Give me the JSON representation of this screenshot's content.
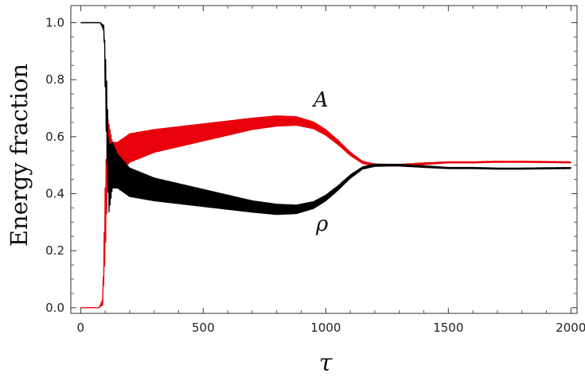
{
  "chart_data": {
    "type": "line",
    "title": "",
    "xlabel": "τ",
    "ylabel": "Energy fraction",
    "xlim": [
      -40,
      2025
    ],
    "ylim": [
      -0.02,
      1.06
    ],
    "x_ticks": [
      0,
      500,
      1000,
      1500,
      2000
    ],
    "y_ticks": [
      0.0,
      0.2,
      0.4,
      0.6,
      0.8,
      1.0
    ],
    "x_tick_labels": [
      "0",
      "500",
      "1000",
      "1500",
      "2000"
    ],
    "y_tick_labels": [
      "0.0",
      "0.2",
      "0.4",
      "0.6",
      "0.8",
      "1.0"
    ],
    "grid": false,
    "series": [
      {
        "name": "A",
        "color": "#e8000b",
        "x": [
          0,
          75,
          90,
          100,
          110,
          130,
          150,
          200,
          300,
          400,
          500,
          600,
          700,
          800,
          880,
          950,
          1000,
          1050,
          1100,
          1150,
          1200,
          1250,
          1300,
          1400,
          1500,
          1600,
          1700,
          1800,
          1900,
          2000
        ],
        "y": [
          0.0,
          0.0,
          0.02,
          0.3,
          0.55,
          0.5,
          0.52,
          0.56,
          0.585,
          0.6,
          0.615,
          0.63,
          0.645,
          0.655,
          0.655,
          0.64,
          0.615,
          0.58,
          0.54,
          0.51,
          0.5,
          0.5,
          0.5,
          0.505,
          0.51,
          0.51,
          0.512,
          0.512,
          0.511,
          0.51
        ],
        "amp": [
          0.0,
          0.0,
          0.01,
          0.12,
          0.12,
          0.08,
          0.06,
          0.05,
          0.04,
          0.035,
          0.03,
          0.025,
          0.02,
          0.018,
          0.015,
          0.012,
          0.01,
          0.008,
          0.006,
          0.004,
          0.004,
          0.003,
          0.003,
          0.003,
          0.002,
          0.002,
          0.002,
          0.002,
          0.002,
          0.002
        ]
      },
      {
        "name": "ρ",
        "color": "#000000",
        "x": [
          0,
          80,
          95,
          105,
          115,
          130,
          150,
          200,
          300,
          400,
          500,
          600,
          700,
          800,
          880,
          950,
          1000,
          1050,
          1100,
          1150,
          1200,
          1250,
          1300,
          1400,
          1500,
          1600,
          1700,
          1800,
          1900,
          2000
        ],
        "y": [
          1.0,
          1.0,
          0.98,
          0.7,
          0.45,
          0.5,
          0.48,
          0.44,
          0.415,
          0.4,
          0.385,
          0.37,
          0.355,
          0.345,
          0.345,
          0.36,
          0.385,
          0.42,
          0.46,
          0.49,
          0.5,
          0.5,
          0.5,
          0.495,
          0.49,
          0.49,
          0.488,
          0.488,
          0.489,
          0.49
        ],
        "amp": [
          0.0,
          0.0,
          0.01,
          0.12,
          0.12,
          0.08,
          0.06,
          0.05,
          0.04,
          0.035,
          0.03,
          0.025,
          0.02,
          0.018,
          0.015,
          0.012,
          0.01,
          0.008,
          0.006,
          0.004,
          0.004,
          0.003,
          0.003,
          0.003,
          0.002,
          0.002,
          0.002,
          0.002,
          0.002,
          0.002
        ]
      }
    ],
    "annotations": [
      {
        "text": "A",
        "x": 980,
        "y": 0.705
      },
      {
        "text": "ρ",
        "x": 985,
        "y": 0.27
      }
    ]
  }
}
